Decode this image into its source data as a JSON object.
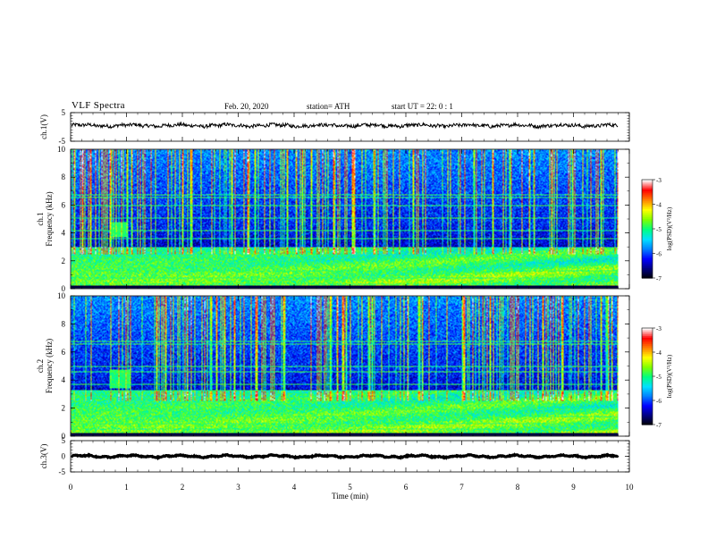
{
  "header": {
    "title": "VLF  Spectra",
    "date": "Feb. 20, 2020",
    "station": "station= ATH",
    "start": "start  UT  =    22: 0   : 1"
  },
  "colors": {
    "trace": "#000000",
    "colormap": [
      "#000000",
      "#00007f",
      "#0000ff",
      "#0080ff",
      "#00e0ff",
      "#00ff80",
      "#80ff00",
      "#ffff00",
      "#ff8000",
      "#ff0000",
      "#ffffff"
    ]
  },
  "chart_data": [
    {
      "type": "line",
      "panel": "ch1-waveform",
      "ylabel": "ch.1(V)",
      "ylim": [
        -5,
        5
      ],
      "yticks": [
        "5",
        "-5"
      ],
      "xlim": [
        0,
        10
      ],
      "series": [
        {
          "x_range": [
            0,
            9.8
          ],
          "approx_level": 0.5,
          "noise_amplitude": 0.6
        }
      ]
    },
    {
      "type": "heatmap",
      "panel": "ch1-spectrogram",
      "ylabel": "ch.1\nFrequency  (kHz)",
      "ylim": [
        0,
        10
      ],
      "yticks": [
        "0",
        "2",
        "4",
        "6",
        "8",
        "10"
      ],
      "xlim": [
        0,
        10
      ],
      "data_xmax": 9.8,
      "colorbar": {
        "label": "log(PSD)(V²/Hz)",
        "range": [
          -7,
          -3
        ],
        "ticks": [
          "-3",
          "-4",
          "-5",
          "-6",
          "-7"
        ]
      },
      "features": {
        "intense_band_khz": [
          0.3,
          3.0
        ],
        "lines_khz": [
          0.3,
          0.8,
          1.3,
          3.6,
          4.2,
          5.1,
          6.0,
          6.6,
          6.8
        ],
        "burst": {
          "t_range_min": [
            0.68,
            1.0
          ],
          "f_range_khz": [
            3.7,
            4.8
          ]
        },
        "sferics_per_min": 18
      }
    },
    {
      "type": "heatmap",
      "panel": "ch2-spectrogram",
      "ylabel": "ch.2\nFrequency  (kHz)",
      "ylim": [
        0,
        10
      ],
      "yticks": [
        "0",
        "2",
        "4",
        "6",
        "8",
        "10"
      ],
      "xlim": [
        0,
        10
      ],
      "data_xmax": 9.8,
      "colorbar": {
        "label": "log(PSD)(V²/Hz)",
        "range": [
          -7,
          -3
        ],
        "ticks": [
          "-3",
          "-4",
          "-5",
          "-6",
          "-7"
        ]
      },
      "features": {
        "intense_band_khz": [
          0.3,
          3.3
        ],
        "lines_khz": [
          0.5,
          0.9,
          1.4,
          1.9,
          3.3,
          3.7,
          4.6,
          5.0,
          6.6,
          6.8
        ],
        "burst": {
          "t_range_min": [
            0.68,
            1.05
          ],
          "f_range_khz": [
            3.4,
            4.8
          ]
        },
        "sferics_per_min": 18
      }
    },
    {
      "type": "line",
      "panel": "ch3-waveform",
      "ylabel": "ch.3(V)",
      "ylim": [
        -5,
        5
      ],
      "yticks": [
        "5",
        "0",
        "-5"
      ],
      "xlim": [
        0,
        10
      ],
      "xlabel": "Time  (min)",
      "xticks": [
        "0",
        "1",
        "2",
        "3",
        "4",
        "5",
        "6",
        "7",
        "8",
        "9",
        "10"
      ],
      "series": [
        {
          "x_range": [
            0,
            9.8
          ],
          "approx_level": 0.0,
          "noise_amplitude": 0.15
        }
      ]
    }
  ]
}
